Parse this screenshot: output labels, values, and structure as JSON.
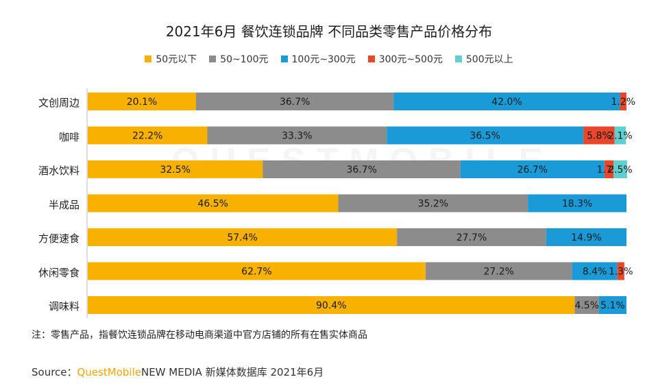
{
  "page": {
    "title": "2021年6月 餐饮连锁品牌 不同品类零售产品价格分布",
    "note": "注：零售产品，指餐饮连锁品牌在移动电商渠道中官方店铺的所有在售实体商品",
    "source_prefix": "Source：",
    "source_brand": "QuestMobile",
    "source_rest": "NEW MEDIA 新媒体数据库 2021年6月",
    "watermark": "QUESTMOBILE"
  },
  "colors": [
    "#f9b100",
    "#8c8c8c",
    "#1a9ad7",
    "#e8472b",
    "#5fcfcf"
  ],
  "chart_data": {
    "type": "bar",
    "orientation": "horizontal",
    "stacked": true,
    "title": "2021年6月 餐饮连锁品牌 不同品类零售产品价格分布",
    "legend_position": "top",
    "xlim": [
      0,
      100
    ],
    "unit": "%",
    "categories": [
      "文创周边",
      "咖啡",
      "酒水饮料",
      "半成品",
      "方便速食",
      "休闲零食",
      "调味料"
    ],
    "series": [
      {
        "name": "50元以下",
        "values": [
          20.1,
          22.2,
          32.5,
          46.5,
          57.4,
          62.7,
          90.4
        ],
        "labels": [
          "20.1%",
          "22.2%",
          "32.5%",
          "46.5%",
          "57.4%",
          "62.7%",
          "90.4%"
        ]
      },
      {
        "name": "50~100元",
        "values": [
          36.7,
          33.3,
          36.7,
          35.2,
          27.7,
          27.2,
          4.5
        ],
        "labels": [
          "36.7%",
          "33.3%",
          "36.7%",
          "35.2%",
          "27.7%",
          "27.2%",
          "4.5%"
        ]
      },
      {
        "name": "100元~300元",
        "values": [
          42.0,
          36.5,
          26.7,
          18.3,
          14.9,
          8.4,
          5.1
        ],
        "labels": [
          "42.0%",
          "36.5%",
          "26.7%",
          "18.3%",
          "14.9%",
          "8.4%",
          "5.1%"
        ]
      },
      {
        "name": "300元~500元",
        "values": [
          1.2,
          5.8,
          1.7,
          0,
          0,
          1.3,
          0
        ],
        "labels": [
          "1.2%",
          "5.8%",
          "1.7%",
          "",
          "",
          "1.3%",
          ""
        ]
      },
      {
        "name": "500元以上",
        "values": [
          0,
          2.1,
          2.5,
          0,
          0,
          0,
          0
        ],
        "labels": [
          "",
          "2.1%",
          "2.5%",
          "",
          "",
          "",
          ""
        ]
      }
    ]
  }
}
